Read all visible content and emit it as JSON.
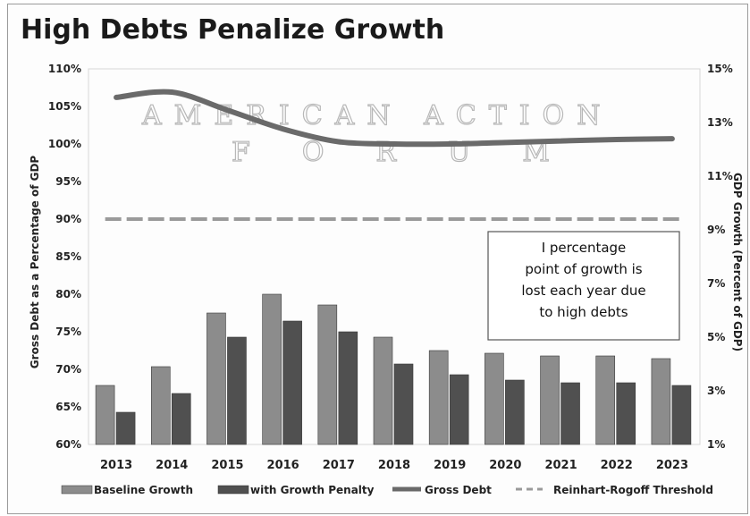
{
  "chart_data": {
    "type": "bar",
    "title": "High Debts Penalize Growth",
    "categories": [
      "2013",
      "2014",
      "2015",
      "2016",
      "2017",
      "2018",
      "2019",
      "2020",
      "2021",
      "2022",
      "2023"
    ],
    "series": [
      {
        "name": "Baseline Growth",
        "axis": "right",
        "kind": "bar",
        "color": "#8c8c8c",
        "values": [
          3.2,
          3.9,
          5.9,
          6.6,
          6.2,
          5.0,
          4.5,
          4.4,
          4.3,
          4.3,
          4.2
        ]
      },
      {
        "name": "with Growth Penalty",
        "axis": "right",
        "kind": "bar",
        "color": "#505050",
        "values": [
          2.2,
          2.9,
          5.0,
          5.6,
          5.2,
          4.0,
          3.6,
          3.4,
          3.3,
          3.3,
          3.2
        ]
      },
      {
        "name": "Gross Debt",
        "axis": "left",
        "kind": "line",
        "color": "#6a6a6a",
        "values": [
          106.2,
          106.9,
          104.5,
          102.0,
          100.3,
          100.0,
          100.0,
          100.2,
          100.4,
          100.6,
          100.7
        ]
      },
      {
        "name": "Reinhart-Rogoff Threshold",
        "axis": "left",
        "kind": "dashed",
        "color": "#9a9a9a",
        "values": [
          90,
          90,
          90,
          90,
          90,
          90,
          90,
          90,
          90,
          90,
          90
        ]
      }
    ],
    "ylabel": "Gross Debt as a Percentage of GDP",
    "y2label": "GDP Growth (Percent of GDP)",
    "ylim": [
      60,
      110
    ],
    "y2lim": [
      1,
      15
    ],
    "yticks": [
      "60%",
      "65%",
      "70%",
      "75%",
      "80%",
      "85%",
      "90%",
      "95%",
      "100%",
      "105%",
      "110%"
    ],
    "y2ticks": [
      "1%",
      "3%",
      "5%",
      "7%",
      "9%",
      "11%",
      "13%",
      "15%"
    ],
    "annotation": "I percentage point of growth is lost each year due to high debts",
    "annotation_lines": [
      "I percentage",
      "point of growth is",
      "lost each year due",
      "to high debts"
    ],
    "watermark": [
      "AMERICAN ACTION",
      "FORUM"
    ],
    "legend_position": "bottom",
    "grid": false
  }
}
